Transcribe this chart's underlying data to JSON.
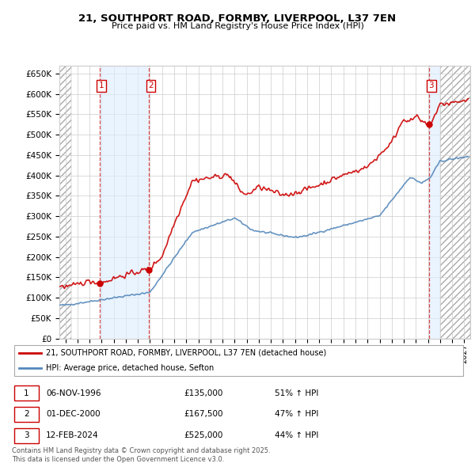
{
  "title": "21, SOUTHPORT ROAD, FORMBY, LIVERPOOL, L37 7EN",
  "subtitle": "Price paid vs. HM Land Registry's House Price Index (HPI)",
  "hpi_label": "HPI: Average price, detached house, Sefton",
  "property_label": "21, SOUTHPORT ROAD, FORMBY, LIVERPOOL, L37 7EN (detached house)",
  "sale_points": [
    {
      "date_num": 1996.84,
      "price": 135000,
      "label": "1"
    },
    {
      "date_num": 2000.92,
      "price": 167500,
      "label": "2"
    },
    {
      "date_num": 2024.12,
      "price": 525000,
      "label": "3"
    }
  ],
  "table_rows": [
    {
      "num": "1",
      "date": "06-NOV-1996",
      "price": "£135,000",
      "change": "51% ↑ HPI"
    },
    {
      "num": "2",
      "date": "01-DEC-2000",
      "price": "£167,500",
      "change": "47% ↑ HPI"
    },
    {
      "num": "3",
      "date": "12-FEB-2024",
      "price": "£525,000",
      "change": "44% ↑ HPI"
    }
  ],
  "footer": "Contains HM Land Registry data © Crown copyright and database right 2025.\nThis data is licensed under the Open Government Licence v3.0.",
  "ylim": [
    0,
    670000
  ],
  "xlim_start": 1993.5,
  "xlim_end": 2027.5,
  "red_color": "#cc0000",
  "blue_color": "#5588bb",
  "grid_color": "#cccccc",
  "shade_color": "#ddeeff"
}
